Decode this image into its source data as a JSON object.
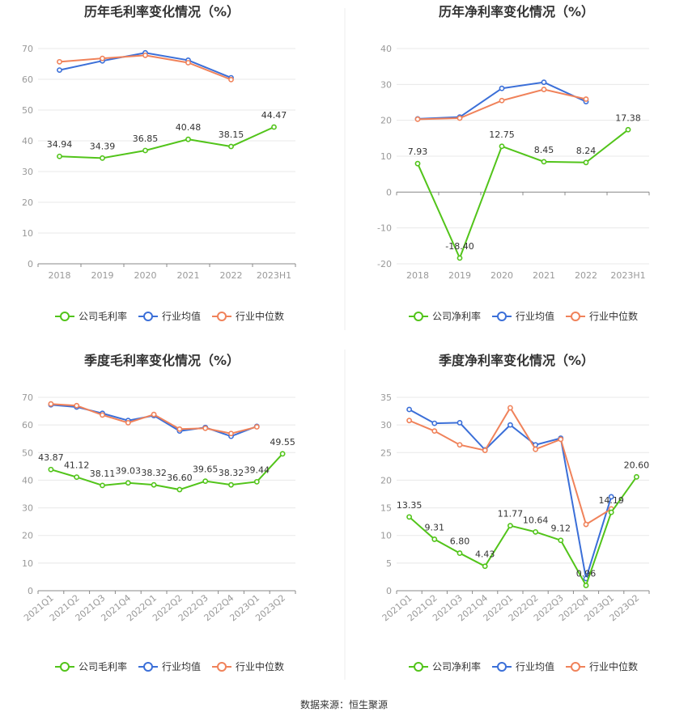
{
  "source_text": "数据来源：恒生聚源",
  "colors": {
    "company": "#52c41a",
    "industry_avg": "#3b6fd8",
    "industry_median": "#f0825a",
    "grid": "#e8e8e8",
    "axis": "#666666",
    "divider": "#eeeeee"
  },
  "chart_data": [
    {
      "type": "line",
      "title": "历年毛利率变化情况（%）",
      "categories": [
        "2018",
        "2019",
        "2020",
        "2021",
        "2022",
        "2023H1"
      ],
      "ylim": [
        0,
        70
      ],
      "yticks": [
        0,
        10,
        20,
        30,
        40,
        50,
        60,
        70
      ],
      "series": [
        {
          "name": "公司毛利率",
          "role": "company",
          "labeled": true,
          "values": [
            34.94,
            34.39,
            36.85,
            40.48,
            38.15,
            44.47
          ]
        },
        {
          "name": "行业均值",
          "role": "industry_avg",
          "values": [
            63.0,
            66.0,
            68.6,
            66.2,
            60.5,
            null
          ]
        },
        {
          "name": "行业中位数",
          "role": "industry_median",
          "values": [
            65.7,
            66.8,
            67.8,
            65.4,
            59.9,
            null
          ]
        }
      ]
    },
    {
      "type": "line",
      "title": "历年净利率变化情况（%）",
      "categories": [
        "2018",
        "2019",
        "2020",
        "2021",
        "2022",
        "2023H1"
      ],
      "ylim": [
        -20,
        40
      ],
      "yticks": [
        -20,
        -10,
        0,
        10,
        20,
        30,
        40
      ],
      "series": [
        {
          "name": "公司净利率",
          "role": "company",
          "labeled": true,
          "values": [
            7.93,
            -18.4,
            12.75,
            8.45,
            8.24,
            17.38
          ]
        },
        {
          "name": "行业均值",
          "role": "industry_avg",
          "values": [
            20.4,
            20.9,
            28.9,
            30.6,
            25.2,
            null
          ]
        },
        {
          "name": "行业中位数",
          "role": "industry_median",
          "values": [
            20.3,
            20.6,
            25.5,
            28.6,
            25.9,
            null
          ]
        }
      ]
    },
    {
      "type": "line",
      "title": "季度毛利率变化情况（%）",
      "categories": [
        "2021Q1",
        "2021Q2",
        "2021Q3",
        "2021Q4",
        "2022Q1",
        "2022Q2",
        "2022Q3",
        "2022Q4",
        "2023Q1",
        "2023Q2"
      ],
      "ylim": [
        0,
        70
      ],
      "yticks": [
        0,
        10,
        20,
        30,
        40,
        50,
        60,
        70
      ],
      "rotate_ticks": true,
      "series": [
        {
          "name": "公司毛利率",
          "role": "company",
          "labeled": true,
          "values": [
            43.87,
            41.12,
            38.11,
            39.03,
            38.32,
            36.6,
            39.65,
            38.32,
            39.44,
            49.55
          ]
        },
        {
          "name": "行业均值",
          "role": "industry_avg",
          "values": [
            67.3,
            66.5,
            64.2,
            61.6,
            63.4,
            57.8,
            59.1,
            55.9,
            59.5,
            null
          ]
        },
        {
          "name": "行业中位数",
          "role": "industry_median",
          "values": [
            67.6,
            67.0,
            63.6,
            60.8,
            63.8,
            58.5,
            58.8,
            56.9,
            59.3,
            null
          ]
        }
      ]
    },
    {
      "type": "line",
      "title": "季度净利率变化情况（%）",
      "categories": [
        "2021Q1",
        "2021Q2",
        "2021Q3",
        "2021Q4",
        "2022Q1",
        "2022Q2",
        "2022Q3",
        "2022Q4",
        "2023Q1",
        "2023Q2"
      ],
      "ylim": [
        0,
        35
      ],
      "yticks": [
        0,
        5,
        10,
        15,
        20,
        25,
        30,
        35
      ],
      "rotate_ticks": true,
      "series": [
        {
          "name": "公司净利率",
          "role": "company",
          "labeled": true,
          "values": [
            13.35,
            9.31,
            6.8,
            4.43,
            11.77,
            10.64,
            9.12,
            0.96,
            14.19,
            20.6
          ]
        },
        {
          "name": "行业均值",
          "role": "industry_avg",
          "values": [
            32.8,
            30.3,
            30.4,
            25.5,
            30.0,
            26.4,
            27.6,
            2.2,
            17.0,
            null
          ]
        },
        {
          "name": "行业中位数",
          "role": "industry_median",
          "values": [
            30.8,
            28.9,
            26.4,
            25.4,
            33.1,
            25.6,
            27.4,
            12.0,
            14.8,
            null
          ]
        }
      ]
    }
  ]
}
